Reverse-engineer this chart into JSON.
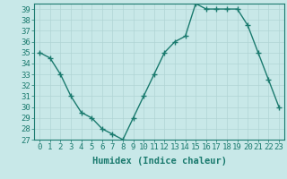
{
  "x": [
    0,
    1,
    2,
    3,
    4,
    5,
    6,
    7,
    8,
    9,
    10,
    11,
    12,
    13,
    14,
    15,
    16,
    17,
    18,
    19,
    20,
    21,
    22,
    23
  ],
  "y": [
    35,
    34.5,
    33,
    31,
    29.5,
    29,
    28,
    27.5,
    27,
    29,
    31,
    33,
    35,
    36,
    36.5,
    39.5,
    39,
    39,
    39,
    39,
    37.5,
    35,
    32.5,
    30
  ],
  "line_color": "#1a7a6e",
  "marker_color": "#1a7a6e",
  "bg_color": "#c8e8e8",
  "grid_color": "#b0d4d4",
  "xlabel": "Humidex (Indice chaleur)",
  "xlim": [
    -0.5,
    23.5
  ],
  "ylim": [
    27,
    39.5
  ],
  "yticks": [
    27,
    28,
    29,
    30,
    31,
    32,
    33,
    34,
    35,
    36,
    37,
    38,
    39
  ],
  "xticks": [
    0,
    1,
    2,
    3,
    4,
    5,
    6,
    7,
    8,
    9,
    10,
    11,
    12,
    13,
    14,
    15,
    16,
    17,
    18,
    19,
    20,
    21,
    22,
    23
  ],
  "xtick_labels": [
    "0",
    "1",
    "2",
    "3",
    "4",
    "5",
    "6",
    "7",
    "8",
    "9",
    "10",
    "11",
    "12",
    "13",
    "14",
    "15",
    "16",
    "17",
    "18",
    "19",
    "20",
    "21",
    "22",
    "23"
  ],
  "tick_font_size": 6.5,
  "xlabel_font_size": 7.5,
  "marker_size": 4,
  "line_width": 1.0
}
